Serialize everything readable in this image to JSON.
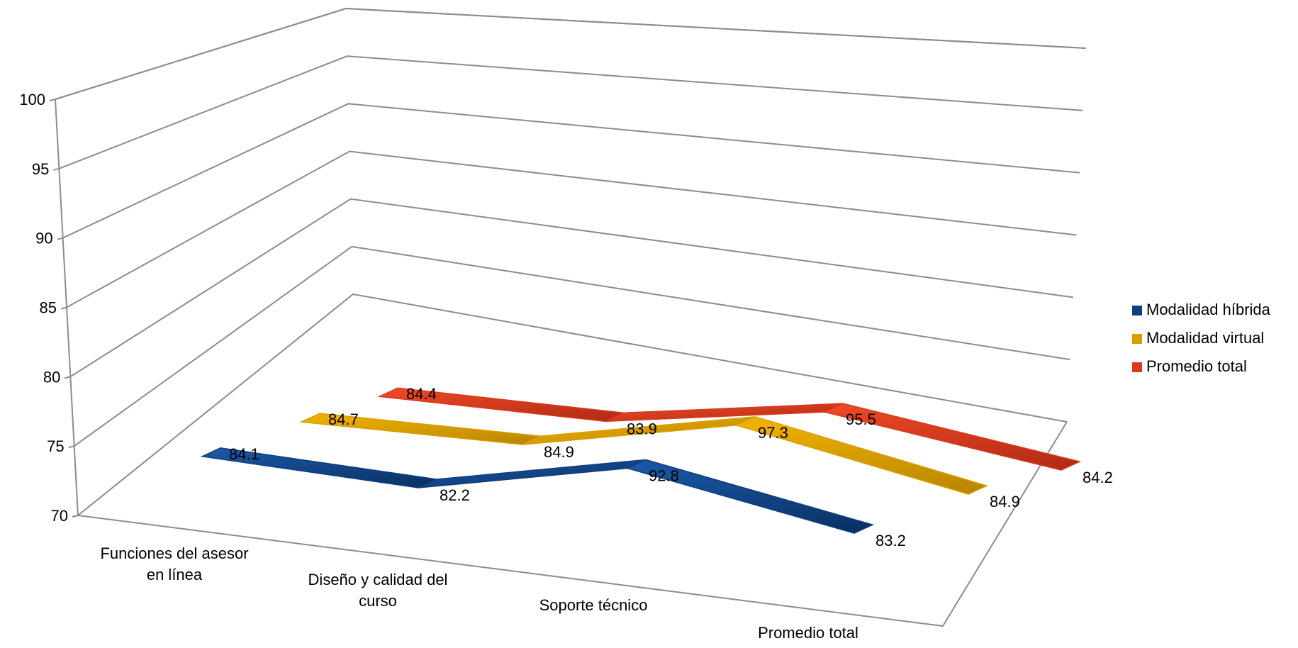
{
  "chart_data": {
    "type": "line",
    "subtype": "3d-line",
    "categories": [
      "Funciones del asesor en línea",
      "Diseño y calidad del curso",
      "Soporte técnico",
      "Promedio total"
    ],
    "series": [
      {
        "name": "Modalidad híbrida",
        "color": "#0f3f7e",
        "values": [
          84.1,
          82.2,
          92.8,
          83.2
        ]
      },
      {
        "name": "Modalidad virtual",
        "color": "#d9a000",
        "values": [
          84.7,
          84.9,
          97.3,
          84.9
        ]
      },
      {
        "name": "Promedio total",
        "color": "#d9391e",
        "values": [
          84.4,
          83.9,
          95.5,
          84.2
        ]
      }
    ],
    "ylim": [
      70,
      100
    ],
    "yticks": [
      70,
      75,
      80,
      85,
      90,
      95,
      100
    ],
    "grid": true,
    "legend": "right"
  }
}
